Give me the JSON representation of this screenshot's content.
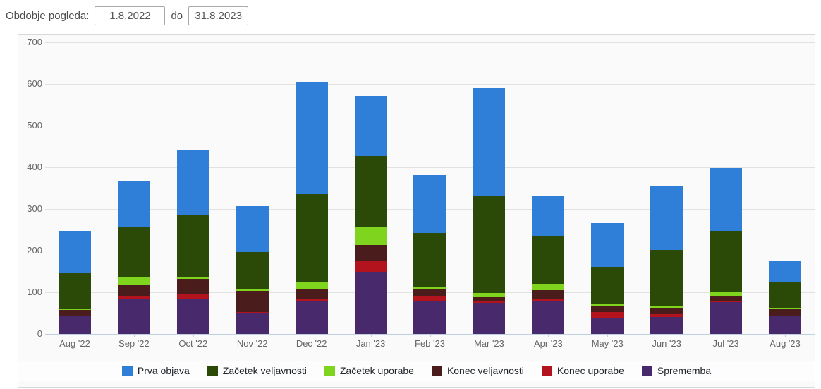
{
  "header": {
    "label": "Obdobje pogleda:",
    "from_value": "1.8.2022",
    "to_label": "do",
    "to_value": "31.8.2023"
  },
  "chart_data": {
    "type": "bar",
    "stacked": true,
    "title": "",
    "xlabel": "",
    "ylabel": "",
    "ylim": [
      0,
      700
    ],
    "ytick_step": 100,
    "grid": true,
    "legend_position": "bottom",
    "categories": [
      "Aug '22",
      "Sep '22",
      "Oct '22",
      "Nov '22",
      "Dec '22",
      "Jan '23",
      "Feb '23",
      "Mar '23",
      "Apr '23",
      "May '23",
      "Jun '23",
      "Jul '23",
      "Aug '23"
    ],
    "series": [
      {
        "name": "Prva objava",
        "color": "#2f7ed8",
        "values": [
          100,
          109,
          156,
          110,
          270,
          143,
          140,
          260,
          97,
          106,
          155,
          150,
          49
        ]
      },
      {
        "name": "Začetek veljavnosti",
        "color": "#2b4a08",
        "values": [
          87,
          123,
          148,
          90,
          213,
          171,
          128,
          232,
          115,
          89,
          133,
          146,
          62
        ]
      },
      {
        "name": "Začetek uporabe",
        "color": "#7fd41e",
        "values": [
          4,
          17,
          4,
          4,
          15,
          43,
          6,
          8,
          15,
          5,
          6,
          10,
          4
        ]
      },
      {
        "name": "Konec veljavnosti",
        "color": "#4a1c1c",
        "values": [
          15,
          27,
          37,
          51,
          24,
          40,
          17,
          10,
          20,
          14,
          15,
          13,
          15
        ]
      },
      {
        "name": "Konec uporabe",
        "color": "#b2131c",
        "values": [
          0,
          6,
          11,
          3,
          4,
          24,
          11,
          6,
          7,
          14,
          6,
          3,
          0
        ]
      },
      {
        "name": "Sprememba",
        "color": "#48296b",
        "values": [
          42,
          85,
          85,
          49,
          80,
          150,
          80,
          74,
          78,
          39,
          41,
          76,
          44
        ]
      }
    ],
    "totals": [
      248,
      367,
      441,
      307,
      606,
      571,
      382,
      590,
      332,
      267,
      356,
      398,
      174
    ],
    "stack_order_bottom_to_top": [
      "Sprememba",
      "Konec uporabe",
      "Konec veljavnosti",
      "Začetek uporabe",
      "Začetek veljavnosti",
      "Prva objava"
    ]
  }
}
